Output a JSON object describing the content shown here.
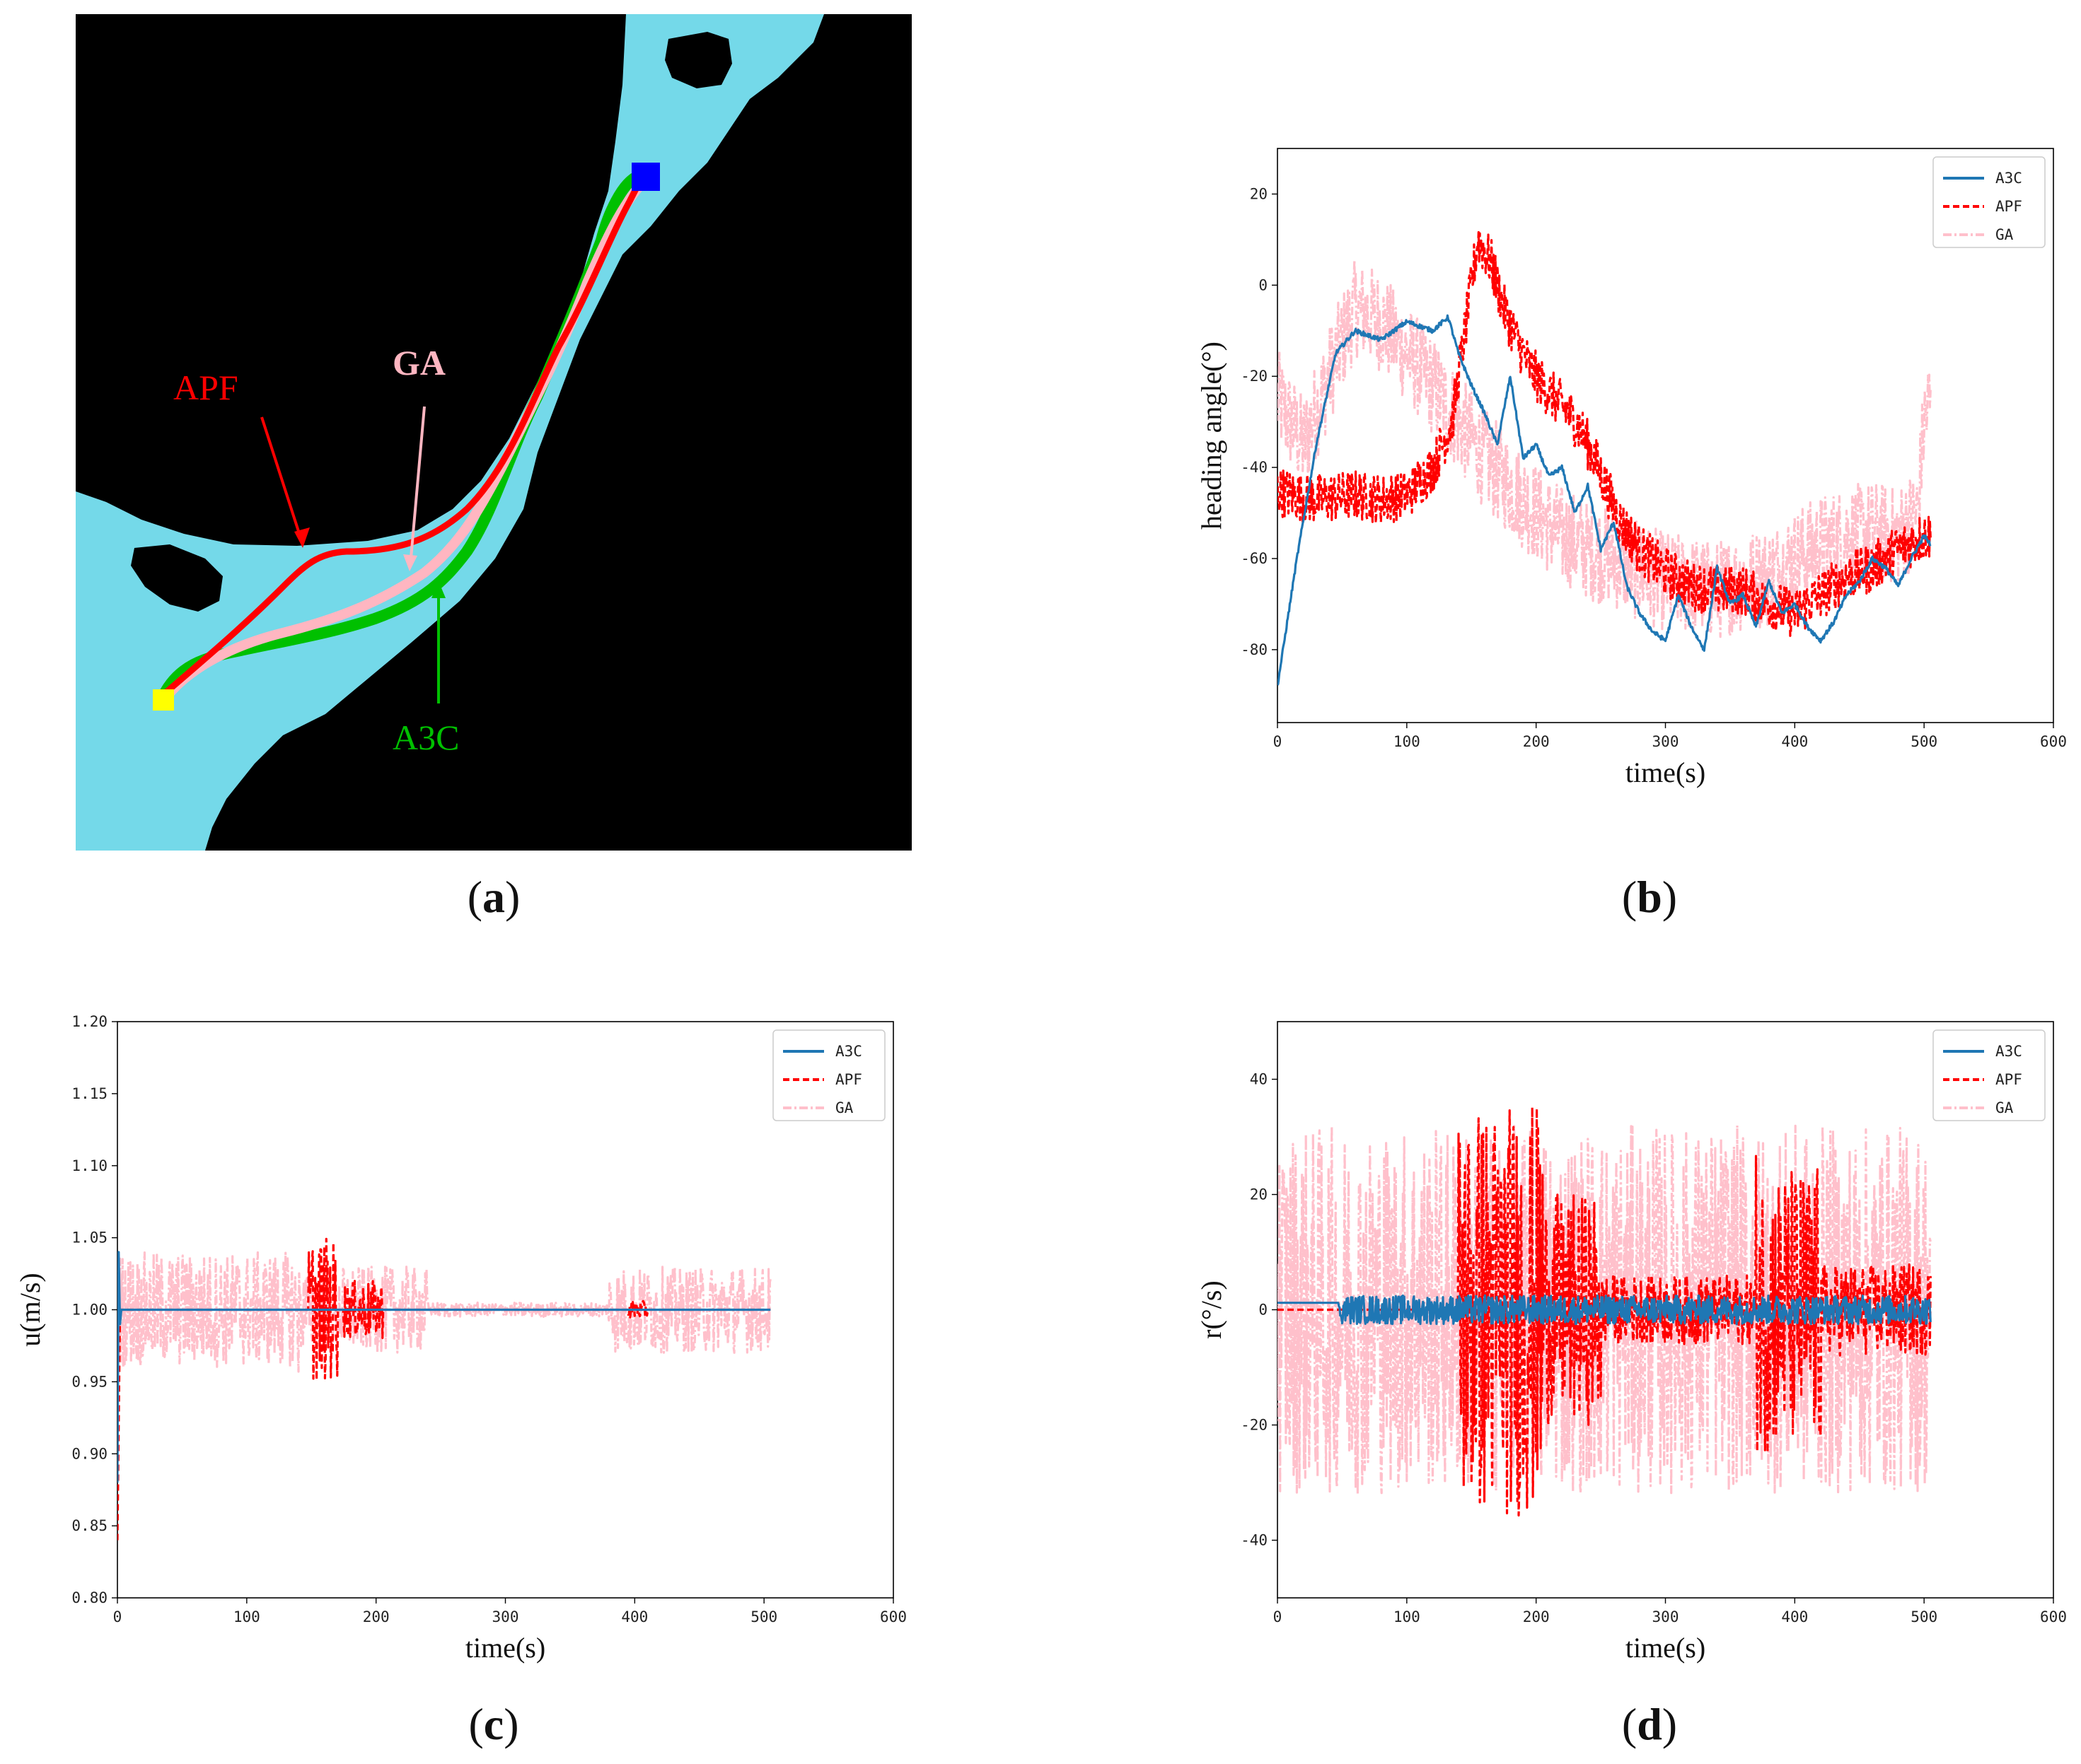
{
  "figure": {
    "captions": {
      "a": "a",
      "b": "b",
      "c": "c",
      "d": "d"
    },
    "colors": {
      "a3c": "#1f77b4",
      "apf": "#ff0000",
      "ga": "#ffc0cb",
      "water": "#74d9e9",
      "land": "#000000",
      "start": "#ffff00",
      "goal": "#0000ff"
    }
  },
  "map": {
    "labels": {
      "apf": "APF",
      "ga": "GA",
      "a3c": "A3C"
    },
    "colors": {
      "apf": "#ff0000",
      "ga": "#ffb6c1",
      "a3c": "#00c000"
    }
  },
  "chart_data": [
    {
      "id": "b",
      "type": "line",
      "xlabel": "time(s)",
      "ylabel": "heading angle(°)",
      "xlim": [
        0,
        600
      ],
      "ylim": [
        -96,
        30
      ],
      "xticks": [
        0,
        100,
        200,
        300,
        400,
        500,
        600
      ],
      "yticks": [
        -80,
        -60,
        -40,
        -20,
        0,
        20
      ],
      "legend": [
        "A3C",
        "APF",
        "GA"
      ],
      "legend_position": "upper-right",
      "series": [
        {
          "name": "A3C",
          "noise": 0.5,
          "points": [
            [
              0,
              -88
            ],
            [
              15,
              -60
            ],
            [
              30,
              -35
            ],
            [
              45,
              -15
            ],
            [
              60,
              -10
            ],
            [
              80,
              -12
            ],
            [
              100,
              -8
            ],
            [
              120,
              -10
            ],
            [
              132,
              -7
            ],
            [
              140,
              -15
            ],
            [
              150,
              -22
            ],
            [
              160,
              -28
            ],
            [
              170,
              -35
            ],
            [
              180,
              -20
            ],
            [
              190,
              -38
            ],
            [
              200,
              -35
            ],
            [
              210,
              -42
            ],
            [
              220,
              -40
            ],
            [
              230,
              -50
            ],
            [
              240,
              -44
            ],
            [
              250,
              -58
            ],
            [
              260,
              -52
            ],
            [
              270,
              -66
            ],
            [
              280,
              -72
            ],
            [
              290,
              -76
            ],
            [
              300,
              -78
            ],
            [
              310,
              -68
            ],
            [
              320,
              -75
            ],
            [
              330,
              -80
            ],
            [
              340,
              -62
            ],
            [
              350,
              -70
            ],
            [
              360,
              -68
            ],
            [
              370,
              -75
            ],
            [
              380,
              -65
            ],
            [
              390,
              -72
            ],
            [
              400,
              -70
            ],
            [
              410,
              -75
            ],
            [
              420,
              -78
            ],
            [
              430,
              -74
            ],
            [
              440,
              -68
            ],
            [
              450,
              -65
            ],
            [
              460,
              -60
            ],
            [
              470,
              -62
            ],
            [
              480,
              -66
            ],
            [
              490,
              -60
            ],
            [
              500,
              -55
            ],
            [
              505,
              -57
            ]
          ]
        },
        {
          "name": "APF",
          "noise": 5.5,
          "points": [
            [
              0,
              -45
            ],
            [
              10,
              -46
            ],
            [
              30,
              -47
            ],
            [
              60,
              -46
            ],
            [
              80,
              -47
            ],
            [
              100,
              -46
            ],
            [
              120,
              -40
            ],
            [
              135,
              -30
            ],
            [
              145,
              -10
            ],
            [
              155,
              10
            ],
            [
              165,
              5
            ],
            [
              175,
              -5
            ],
            [
              185,
              -12
            ],
            [
              195,
              -18
            ],
            [
              205,
              -22
            ],
            [
              215,
              -25
            ],
            [
              225,
              -28
            ],
            [
              235,
              -32
            ],
            [
              245,
              -38
            ],
            [
              255,
              -45
            ],
            [
              265,
              -52
            ],
            [
              280,
              -58
            ],
            [
              300,
              -63
            ],
            [
              320,
              -66
            ],
            [
              340,
              -67
            ],
            [
              360,
              -67
            ],
            [
              380,
              -70
            ],
            [
              400,
              -72
            ],
            [
              420,
              -68
            ],
            [
              440,
              -64
            ],
            [
              460,
              -62
            ],
            [
              480,
              -58
            ],
            [
              500,
              -55
            ],
            [
              505,
              -55
            ]
          ]
        },
        {
          "name": "GA",
          "noise": 11,
          "points": [
            [
              0,
              -25
            ],
            [
              20,
              -35
            ],
            [
              40,
              -20
            ],
            [
              60,
              -5
            ],
            [
              80,
              -8
            ],
            [
              100,
              -15
            ],
            [
              120,
              -22
            ],
            [
              140,
              -30
            ],
            [
              160,
              -38
            ],
            [
              180,
              -44
            ],
            [
              200,
              -50
            ],
            [
              220,
              -55
            ],
            [
              240,
              -58
            ],
            [
              260,
              -60
            ],
            [
              280,
              -63
            ],
            [
              300,
              -65
            ],
            [
              320,
              -66
            ],
            [
              340,
              -67
            ],
            [
              360,
              -65
            ],
            [
              380,
              -64
            ],
            [
              400,
              -60
            ],
            [
              420,
              -57
            ],
            [
              440,
              -55
            ],
            [
              460,
              -54
            ],
            [
              480,
              -55
            ],
            [
              495,
              -50
            ],
            [
              500,
              -30
            ],
            [
              505,
              -25
            ]
          ]
        }
      ]
    },
    {
      "id": "c",
      "type": "line",
      "xlabel": "time(s)",
      "ylabel": "u(m/s)",
      "xlim": [
        0,
        600
      ],
      "ylim": [
        0.8,
        1.2
      ],
      "xticks": [
        0,
        100,
        200,
        300,
        400,
        500,
        600
      ],
      "yticks": [
        0.8,
        0.85,
        0.9,
        0.95,
        1.0,
        1.05,
        1.1,
        1.15,
        1.2
      ],
      "ytick_labels": [
        "0.80",
        "0.85",
        "0.90",
        "0.95",
        "1.00",
        "1.05",
        "1.10",
        "1.15",
        "1.20"
      ],
      "legend": [
        "A3C",
        "APF",
        "GA"
      ],
      "legend_position": "upper-right",
      "series": [
        {
          "name": "A3C",
          "noise": 0,
          "points": [
            [
              0,
              0.88
            ],
            [
              1,
              1.04
            ],
            [
              2,
              0.99
            ],
            [
              3,
              1.0
            ],
            [
              505,
              1.0
            ]
          ]
        },
        {
          "name": "APF",
          "noise": 0,
          "bursts": [
            [
              148,
              170,
              0.05
            ],
            [
              175,
              205,
              0.02
            ],
            [
              395,
              410,
              0.006
            ]
          ],
          "points": [
            [
              0,
              0.84
            ],
            [
              2,
              1.0
            ],
            [
              505,
              1.0
            ]
          ]
        },
        {
          "name": "GA",
          "noise": 0,
          "bursts": [
            [
              0,
              140,
              0.04
            ],
            [
              140,
              240,
              0.03
            ],
            [
              240,
              380,
              0.005
            ],
            [
              380,
              505,
              0.03
            ]
          ],
          "points": [
            [
              0,
              1.0
            ],
            [
              505,
              1.0
            ]
          ]
        }
      ]
    },
    {
      "id": "d",
      "type": "line",
      "xlabel": "time(s)",
      "ylabel": "r(°/s)",
      "xlim": [
        0,
        600
      ],
      "ylim": [
        -50,
        50
      ],
      "xticks": [
        0,
        100,
        200,
        300,
        400,
        500,
        600
      ],
      "yticks": [
        -40,
        -20,
        0,
        20,
        40
      ],
      "legend": [
        "A3C",
        "APF",
        "GA"
      ],
      "legend_position": "upper-right",
      "series": [
        {
          "name": "A3C",
          "noise": 0,
          "bursts": [
            [
              48,
              505,
              2.5
            ]
          ],
          "points": [
            [
              0,
              1.2
            ],
            [
              47,
              1.2
            ],
            [
              48,
              0
            ],
            [
              505,
              0
            ]
          ]
        },
        {
          "name": "APF",
          "noise": 0,
          "bursts": [
            [
              140,
              205,
              36
            ],
            [
              205,
              250,
              20
            ],
            [
              250,
              370,
              6
            ],
            [
              370,
              420,
              25
            ],
            [
              420,
              505,
              8
            ]
          ],
          "points": [
            [
              0,
              0
            ],
            [
              505,
              0
            ]
          ]
        },
        {
          "name": "GA",
          "noise": 0,
          "bursts": [
            [
              0,
              505,
              32
            ]
          ],
          "points": [
            [
              0,
              0
            ],
            [
              505,
              0
            ]
          ]
        }
      ]
    }
  ]
}
